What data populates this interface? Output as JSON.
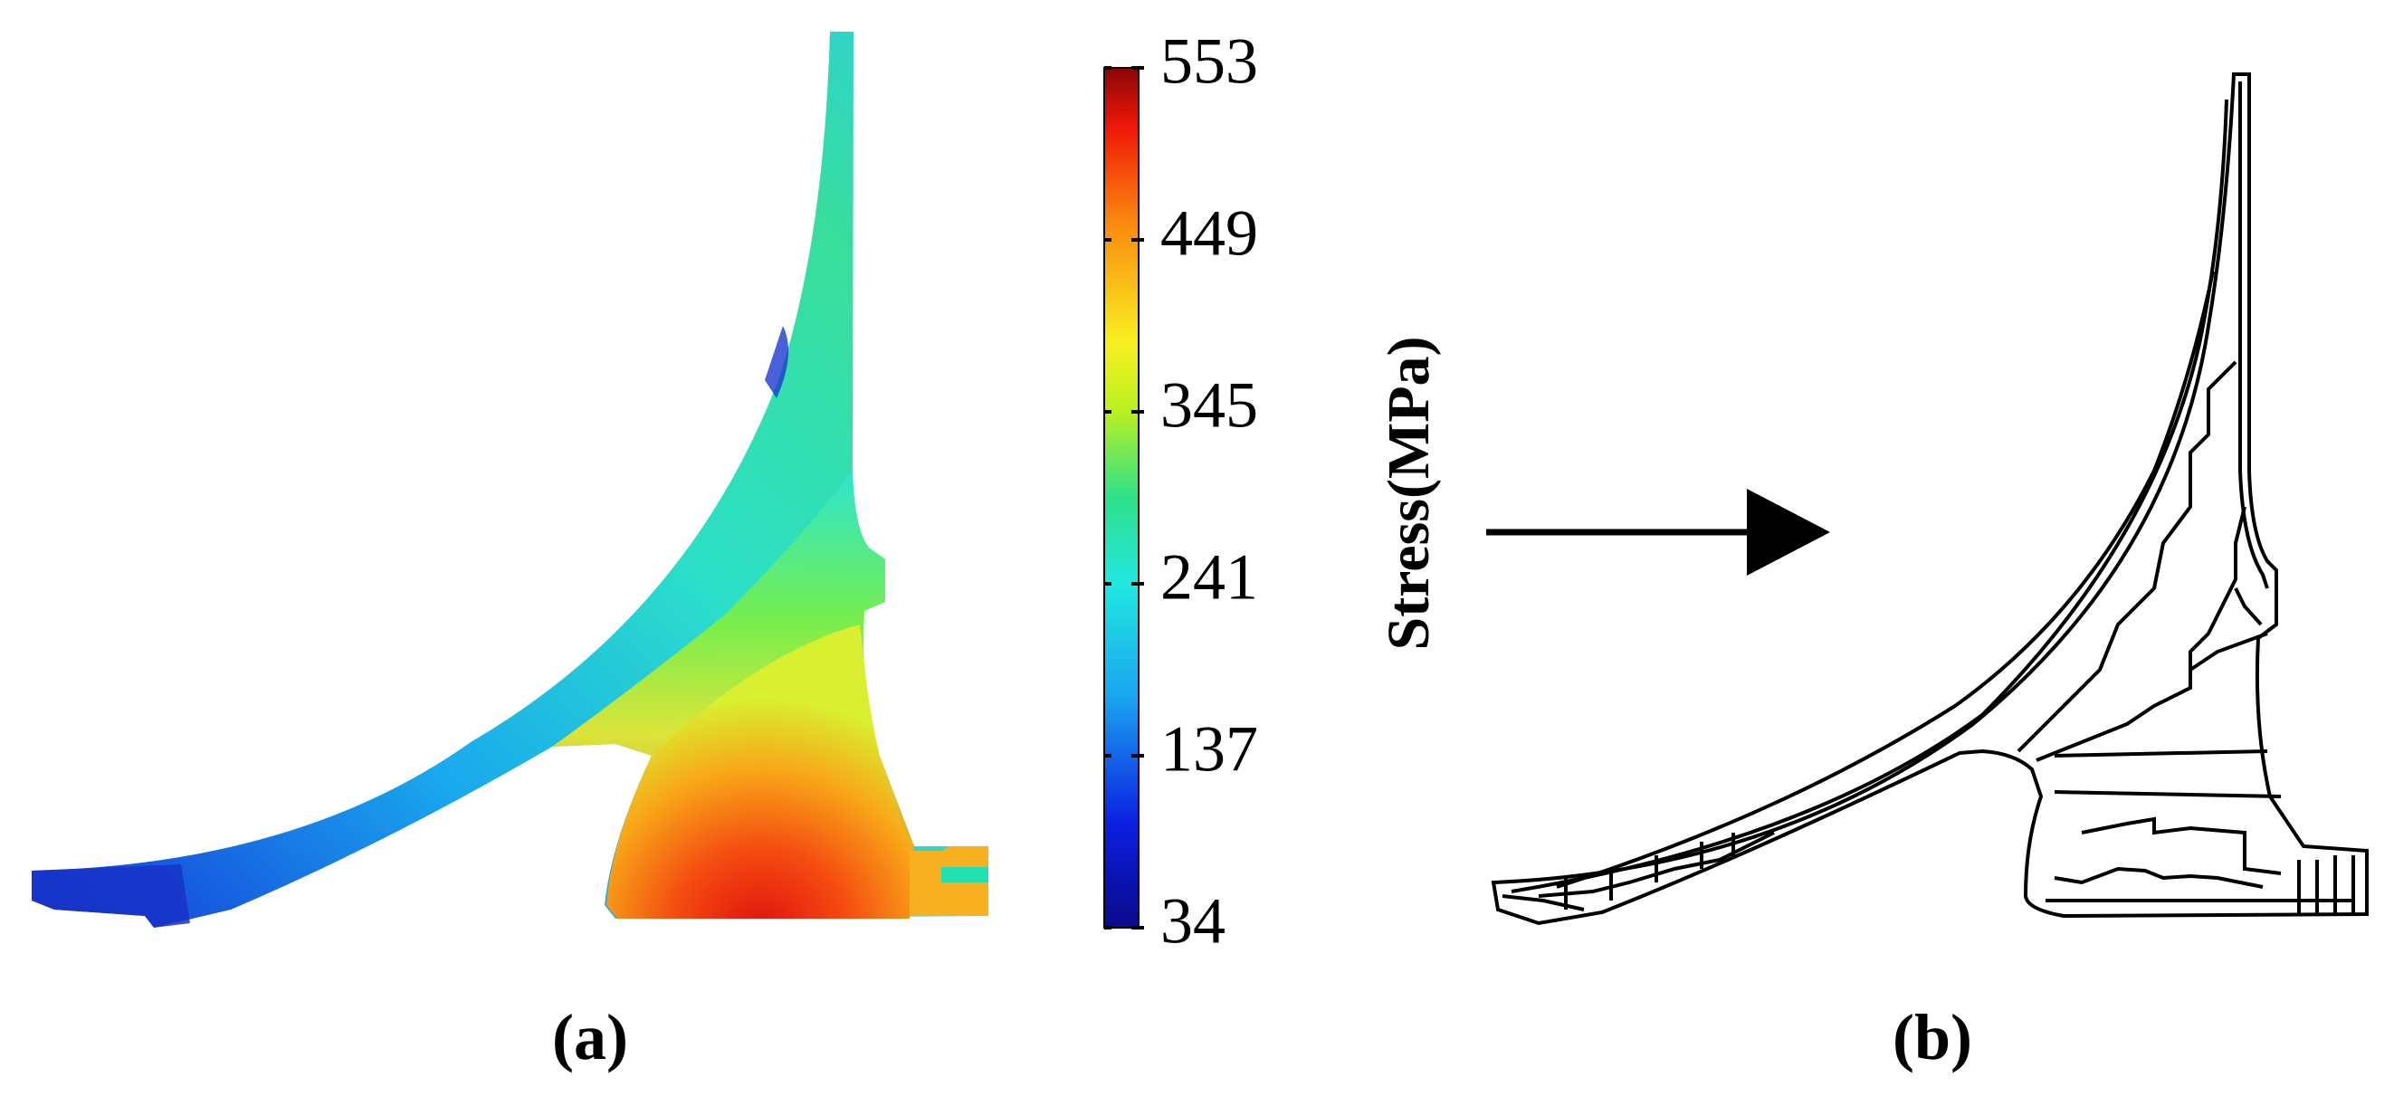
{
  "panels": {
    "a": {
      "label": "(a)"
    },
    "b": {
      "label": "(b)"
    }
  },
  "colorbar": {
    "title": "Stress(MPa)",
    "ticks": [
      "553",
      "449",
      "345",
      "241",
      "137",
      "34"
    ],
    "min": 34,
    "max": 553
  }
}
